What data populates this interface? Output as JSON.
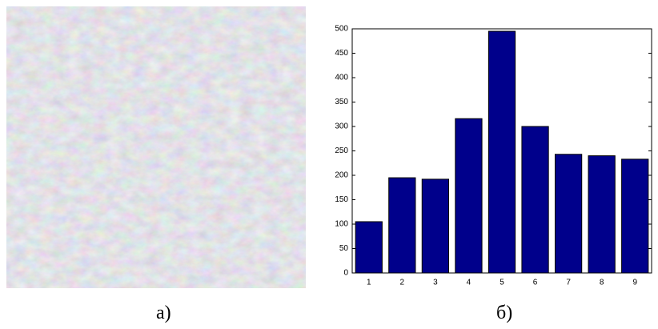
{
  "captions": {
    "left": "а)",
    "right": "б)"
  },
  "chart_data": {
    "type": "bar",
    "categories": [
      "1",
      "2",
      "3",
      "4",
      "5",
      "6",
      "7",
      "8",
      "9"
    ],
    "values": [
      105,
      195,
      192,
      316,
      495,
      300,
      243,
      240,
      233
    ],
    "color": "#00008b",
    "ylim": [
      0,
      500
    ],
    "yticks": [
      0,
      50,
      100,
      150,
      200,
      250,
      300,
      350,
      400,
      450,
      500
    ]
  }
}
